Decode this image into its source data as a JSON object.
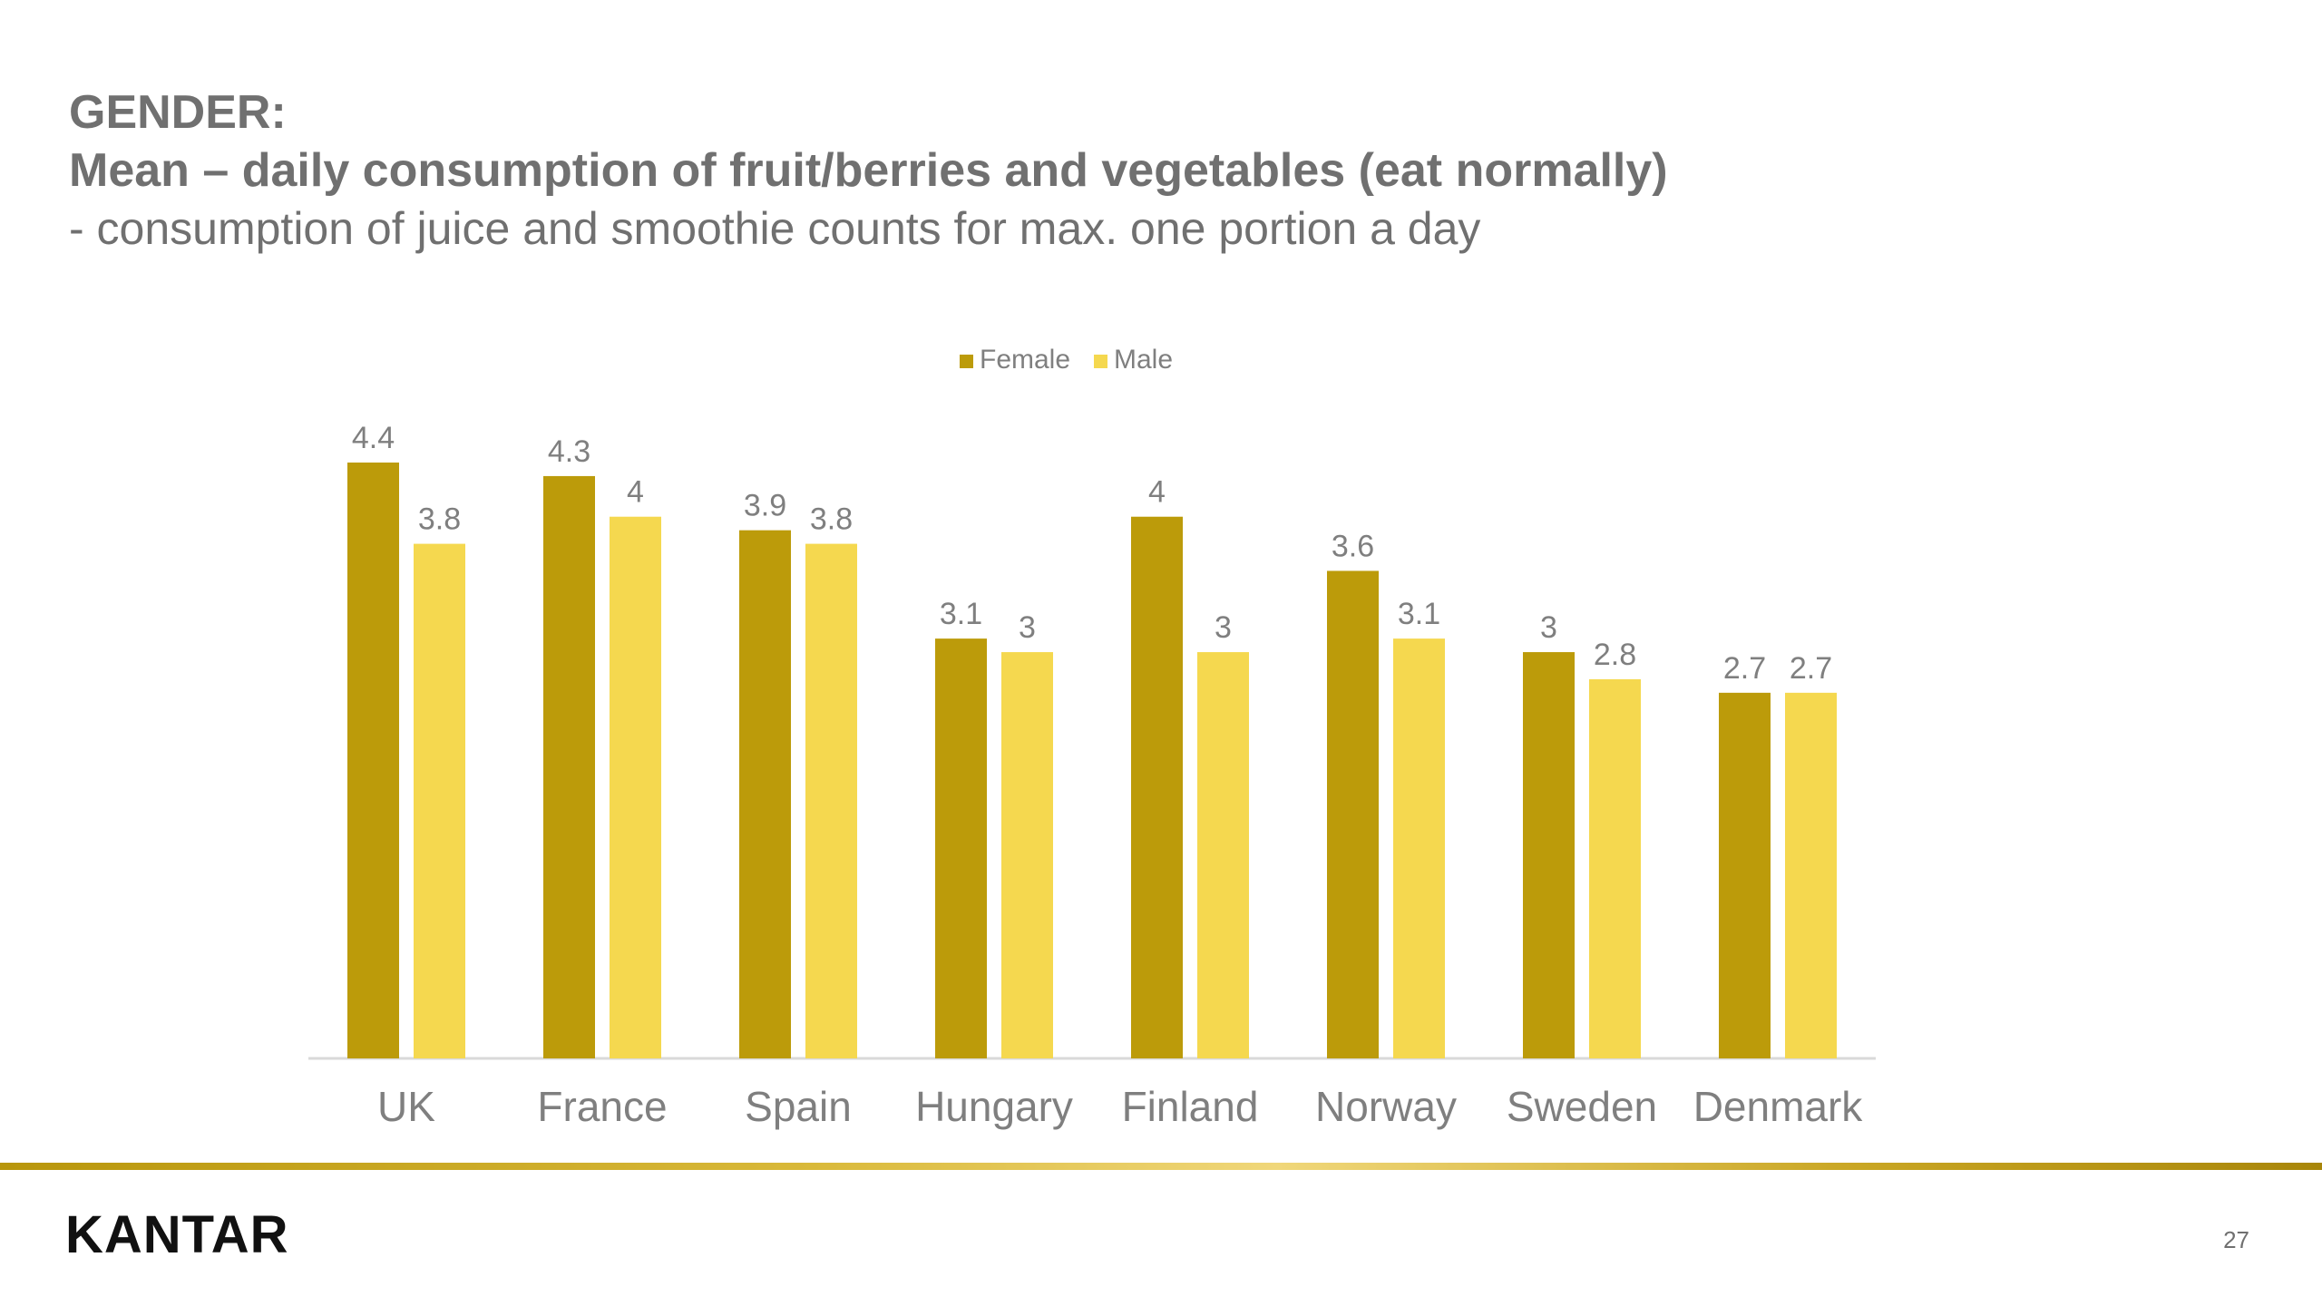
{
  "header": {
    "line1": "GENDER:",
    "line2": "Mean – daily consumption of fruit/berries and vegetables (eat normally)",
    "line3": "- consumption of juice and smoothie counts for max. one portion a day"
  },
  "footer": {
    "logo": "KANTAR",
    "page_number": "27"
  },
  "colors": {
    "female": "#bc9b0a",
    "male": "#f5d84f",
    "text": "#7f7f7f",
    "axis": "#d9d9d9"
  },
  "chart_data": {
    "type": "bar",
    "categories": [
      "UK",
      "France",
      "Spain",
      "Hungary",
      "Finland",
      "Norway",
      "Sweden",
      "Denmark"
    ],
    "series": [
      {
        "name": "Female",
        "values": [
          4.4,
          4.3,
          3.9,
          3.1,
          4,
          3.6,
          3,
          2.7
        ]
      },
      {
        "name": "Male",
        "values": [
          3.8,
          4,
          3.8,
          3,
          3,
          3.1,
          2.8,
          2.7
        ]
      }
    ],
    "ylim": [
      0,
      4.4
    ],
    "legend": "top-center",
    "grid": false
  }
}
